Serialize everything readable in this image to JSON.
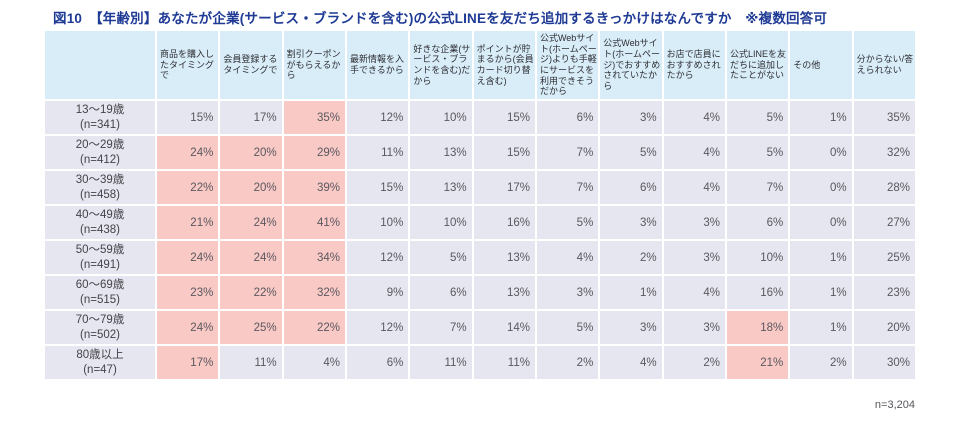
{
  "title": "図10　【年齢別】あなたが企業(サービス・ブランドを含む)の公式LINEを友だち追加するきっかけはなんですか　※複数回答可",
  "colors": {
    "header_bg": "#d8edf8",
    "cell_bg": "#e6e6f0",
    "highlight_bg": "#f9c9c6",
    "title_color": "#1e3a94",
    "value_color": "#5a585e"
  },
  "chart_data": {
    "type": "table",
    "title": "図10　【年齢別】あなたが企業(サービス・ブランドを含む)の公式LINEを友だち追加するきっかけはなんですか　※複数回答可",
    "value_unit": "%",
    "columns": [
      "商品を購入したタイミングで",
      "会員登録するタイミングで",
      "割引クーポンがもらえるから",
      "最新情報を入手できるから",
      "好きな企業(サービス・ブランドを含む)だから",
      "ポイントが貯まるから(会員カード切り替え含む)",
      "公式Webサイト(ホームページ)よりも手軽にサービスを利用できそうだから",
      "公式Webサイト(ホームページ)でおすすめされていたから",
      "お店で店員におすすめされたから",
      "公式LINEを友だちに追加したことがない",
      "その他",
      "分からない/答えられない"
    ],
    "rows": [
      {
        "label": "13〜19歳",
        "n": "(n=341)",
        "values_pct": [
          15,
          17,
          35,
          12,
          10,
          15,
          6,
          3,
          4,
          5,
          1,
          35
        ],
        "highlighted_cols": [
          2
        ]
      },
      {
        "label": "20〜29歳",
        "n": "(n=412)",
        "values_pct": [
          24,
          20,
          29,
          11,
          13,
          15,
          7,
          5,
          4,
          5,
          0,
          32
        ],
        "highlighted_cols": [
          0,
          1,
          2
        ]
      },
      {
        "label": "30〜39歳",
        "n": "(n=458)",
        "values_pct": [
          22,
          20,
          39,
          15,
          13,
          17,
          7,
          6,
          4,
          7,
          0,
          28
        ],
        "highlighted_cols": [
          0,
          1,
          2
        ]
      },
      {
        "label": "40〜49歳",
        "n": "(n=438)",
        "values_pct": [
          21,
          24,
          41,
          10,
          10,
          16,
          5,
          3,
          3,
          6,
          0,
          27
        ],
        "highlighted_cols": [
          0,
          1,
          2
        ]
      },
      {
        "label": "50〜59歳",
        "n": "(n=491)",
        "values_pct": [
          24,
          24,
          34,
          12,
          5,
          13,
          4,
          2,
          3,
          10,
          1,
          25
        ],
        "highlighted_cols": [
          0,
          1,
          2
        ]
      },
      {
        "label": "60〜69歳",
        "n": "(n=515)",
        "values_pct": [
          23,
          22,
          32,
          9,
          6,
          13,
          3,
          1,
          4,
          16,
          1,
          23
        ],
        "highlighted_cols": [
          0,
          1,
          2
        ]
      },
      {
        "label": "70〜79歳",
        "n": "(n=502)",
        "values_pct": [
          24,
          25,
          22,
          12,
          7,
          14,
          5,
          3,
          3,
          18,
          1,
          20
        ],
        "highlighted_cols": [
          0,
          1,
          2,
          9
        ]
      },
      {
        "label": "80歳以上",
        "n": "(n=47)",
        "values_pct": [
          17,
          11,
          4,
          6,
          11,
          11,
          2,
          4,
          2,
          21,
          2,
          30
        ],
        "highlighted_cols": [
          0,
          9
        ]
      }
    ],
    "note": "n=3,204"
  }
}
